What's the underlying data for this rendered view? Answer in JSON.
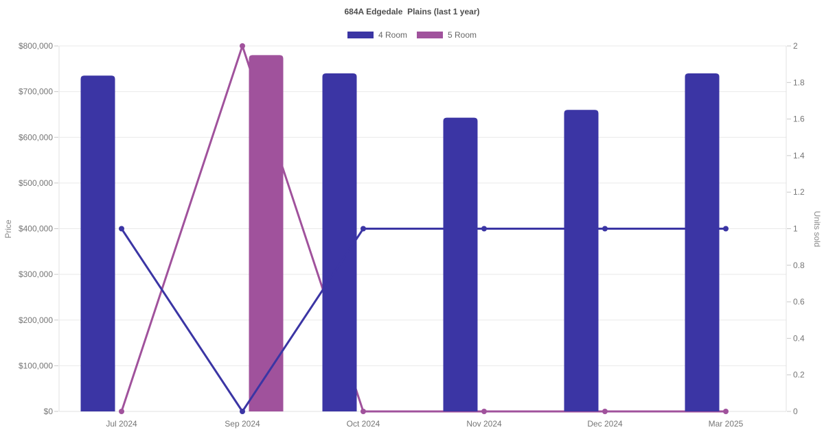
{
  "chart_data": {
    "type": "combo",
    "title": "684A Edgedale  Plains (last 1 year)",
    "legend_position": "top",
    "grid": "horizontal",
    "categories": [
      "Jul 2024",
      "Sep 2024",
      "Oct 2024",
      "Nov 2024",
      "Dec 2024",
      "Mar 2025"
    ],
    "series": [
      {
        "name": "4 Room",
        "type": "bar",
        "yAxis": "left",
        "color": "#3b35a4",
        "values": [
          735000,
          null,
          740000,
          643000,
          660000,
          740000
        ]
      },
      {
        "name": "5 Room",
        "type": "bar",
        "yAxis": "left",
        "color": "#a0529c",
        "values": [
          null,
          780000,
          null,
          null,
          null,
          null
        ]
      },
      {
        "name": "4 Room",
        "type": "line",
        "yAxis": "right",
        "color": "#3b35a4",
        "values": [
          1,
          0,
          1,
          1,
          1,
          1
        ]
      },
      {
        "name": "5 Room",
        "type": "line",
        "yAxis": "right",
        "color": "#a0529c",
        "values": [
          0,
          2,
          0,
          0,
          0,
          0
        ]
      }
    ],
    "axes": {
      "left": {
        "title": "Price",
        "min": 0,
        "max": 800000,
        "step": 100000,
        "ticks": [
          "$0",
          "$100,000",
          "$200,000",
          "$300,000",
          "$400,000",
          "$500,000",
          "$600,000",
          "$700,000",
          "$800,000"
        ]
      },
      "right": {
        "title": "Units sold",
        "min": 0,
        "max": 2,
        "step": 0.2,
        "ticks": [
          "0",
          "0.2",
          "0.4",
          "0.6",
          "0.8",
          "1",
          "1.2",
          "1.4",
          "1.6",
          "1.8",
          "2"
        ]
      }
    }
  },
  "legend": {
    "items": [
      {
        "label": "4 Room",
        "color": "#3b35a4"
      },
      {
        "label": "5 Room",
        "color": "#a0529c"
      }
    ]
  },
  "colors": {
    "background": "#ffffff",
    "grid": "#e9e9e9",
    "axis_border": "#e0e0e0",
    "tick_mark": "#c8c8c8",
    "tick_text": "#757575",
    "title_text": "#4d4d4d",
    "legend_text": "#666666"
  }
}
